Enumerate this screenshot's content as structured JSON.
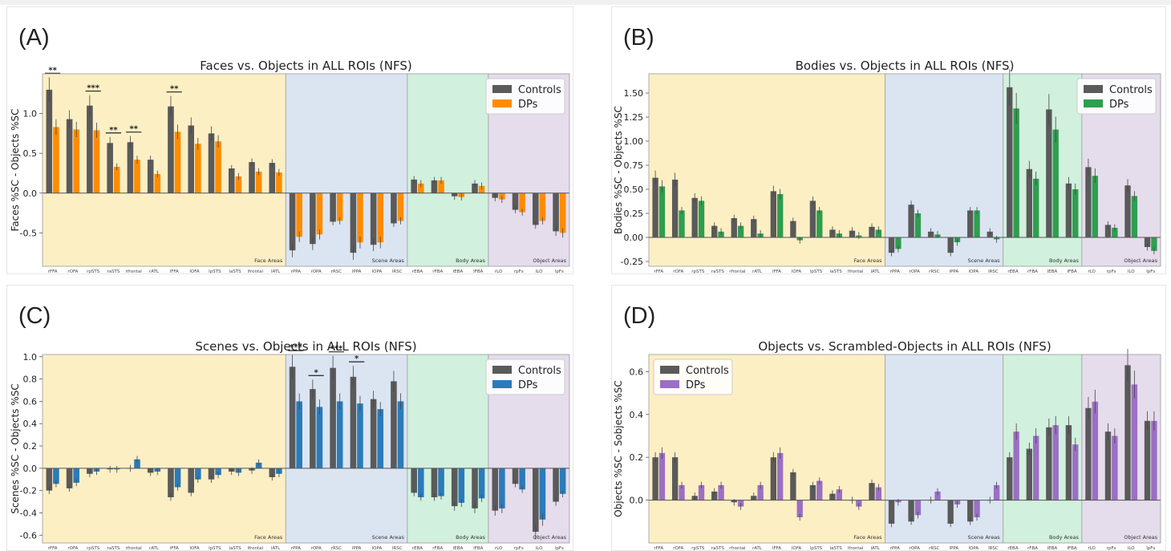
{
  "chart_data": [
    {
      "type": "bar",
      "panel_label": "(A)",
      "title": "Faces vs. Objects in ALL ROIs (NFS)",
      "ylabel": "Faces %SC - Objects %SC",
      "ylim": [
        -0.92,
        1.5
      ],
      "yticks": [
        "1.0",
        "0.5",
        "0.0",
        "-0.5"
      ],
      "ytick_values": [
        1.0,
        0.5,
        0.0,
        -0.5
      ],
      "legend_position": "top-right",
      "categories": [
        "rFFA",
        "rOFA",
        "rpSTS",
        "raSTS",
        "rfrontal",
        "rATL",
        "lFFA",
        "lOFA",
        "lpSTS",
        "laSTS",
        "lfrontal",
        "lATL",
        "rPPA",
        "rOPA",
        "rRSC",
        "lPPA",
        "lOPA",
        "lRSC",
        "rEBA",
        "rFBA",
        "lEBA",
        "lFBA",
        "rLO",
        "rpFs",
        "lLO",
        "lpFs"
      ],
      "regions": [
        {
          "label": "Face Areas",
          "color": "#fdefc4",
          "start": 0,
          "end": 11
        },
        {
          "label": "Scene Areas",
          "color": "#dbe5f2",
          "start": 12,
          "end": 17
        },
        {
          "label": "Body Areas",
          "color": "#d1f0dd",
          "start": 18,
          "end": 21
        },
        {
          "label": "Object Areas",
          "color": "#e5dcec",
          "start": 22,
          "end": 25
        }
      ],
      "series": [
        {
          "name": "Controls",
          "color": "#5a5a5a",
          "values": [
            1.3,
            0.93,
            1.1,
            0.63,
            0.64,
            0.42,
            1.09,
            0.85,
            0.75,
            0.31,
            0.39,
            0.38,
            -0.72,
            -0.64,
            -0.36,
            -0.75,
            -0.65,
            -0.38,
            0.17,
            0.16,
            -0.04,
            0.12,
            -0.06,
            -0.21,
            -0.4,
            -0.48
          ]
        },
        {
          "name": "DPs",
          "color": "#ff8c00",
          "values": [
            0.83,
            0.8,
            0.79,
            0.33,
            0.42,
            0.24,
            0.77,
            0.62,
            0.65,
            0.21,
            0.27,
            0.26,
            -0.55,
            -0.52,
            -0.35,
            -0.62,
            -0.62,
            -0.35,
            0.12,
            0.16,
            -0.05,
            0.09,
            -0.08,
            -0.24,
            -0.35,
            -0.5
          ]
        }
      ],
      "significance": [
        {
          "index": 0,
          "label": "**"
        },
        {
          "index": 2,
          "label": "***"
        },
        {
          "index": 3,
          "label": "**"
        },
        {
          "index": 4,
          "label": "**"
        },
        {
          "index": 6,
          "label": "**"
        }
      ]
    },
    {
      "type": "bar",
      "panel_label": "(B)",
      "title": "Bodies vs. Objects in ALL ROIs (NFS)",
      "ylabel": "Bodies %SC - Objects %SC",
      "ylim": [
        -0.3,
        1.7
      ],
      "yticks": [
        "1.50",
        "1.25",
        "1.00",
        "0.75",
        "0.50",
        "0.25",
        "0.00",
        "-0.25"
      ],
      "ytick_values": [
        1.5,
        1.25,
        1.0,
        0.75,
        0.5,
        0.25,
        0.0,
        -0.25
      ],
      "legend_position": "top-right",
      "categories": [
        "rFFA",
        "rOFA",
        "rpSTS",
        "raSTS",
        "rfrontal",
        "rATL",
        "lFFA",
        "lOFA",
        "lpSTS",
        "laSTS",
        "lfrontal",
        "lATL",
        "rPPA",
        "rOPA",
        "rRSC",
        "lPPA",
        "lOPA",
        "lRSC",
        "rEBA",
        "rFBA",
        "lEBA",
        "lFBA",
        "rLO",
        "rpFs",
        "lLO",
        "lpFs"
      ],
      "regions": [
        {
          "label": "Face Areas",
          "color": "#fdefc4",
          "start": 0,
          "end": 11
        },
        {
          "label": "Scene Areas",
          "color": "#dbe5f2",
          "start": 12,
          "end": 17
        },
        {
          "label": "Body Areas",
          "color": "#d1f0dd",
          "start": 18,
          "end": 21
        },
        {
          "label": "Object Areas",
          "color": "#e5dcec",
          "start": 22,
          "end": 25
        }
      ],
      "series": [
        {
          "name": "Controls",
          "color": "#5a5a5a",
          "values": [
            0.62,
            0.6,
            0.41,
            0.12,
            0.2,
            0.19,
            0.48,
            0.17,
            0.38,
            0.08,
            0.07,
            0.11,
            -0.16,
            0.34,
            0.06,
            -0.16,
            0.28,
            0.06,
            1.56,
            0.71,
            1.33,
            0.56,
            0.73,
            0.13,
            0.54,
            -0.1
          ]
        },
        {
          "name": "DPs",
          "color": "#2e9e4f",
          "values": [
            0.53,
            0.28,
            0.38,
            0.06,
            0.12,
            0.04,
            0.45,
            -0.03,
            0.28,
            0.04,
            0.02,
            0.08,
            -0.12,
            0.25,
            0.03,
            -0.05,
            0.28,
            -0.02,
            1.34,
            0.61,
            1.12,
            0.5,
            0.64,
            0.1,
            0.43,
            -0.14
          ]
        }
      ],
      "significance": []
    },
    {
      "type": "bar",
      "panel_label": "(C)",
      "title": "Scenes vs. Objects in ALL ROIs (NFS)",
      "ylabel": "Scenes %SC - Objects %SC",
      "ylim": [
        -0.67,
        1.02
      ],
      "yticks": [
        "1.0",
        "0.8",
        "0.6",
        "0.4",
        "0.2",
        "0.0",
        "-0.2",
        "-0.4",
        "-0.6"
      ],
      "ytick_values": [
        1.0,
        0.8,
        0.6,
        0.4,
        0.2,
        0.0,
        -0.2,
        -0.4,
        -0.6
      ],
      "legend_position": "top-right",
      "categories": [
        "rFFA",
        "rOFA",
        "rpSTS",
        "raSTS",
        "rfrontal",
        "rATL",
        "lFFA",
        "lOFA",
        "lpSTS",
        "laSTS",
        "lfrontal",
        "lATL",
        "rPPA",
        "rOPA",
        "rRSC",
        "lPPA",
        "lOPA",
        "lRSC",
        "rEBA",
        "rFBA",
        "lEBA",
        "lFBA",
        "rLO",
        "rpFs",
        "lLO",
        "lpFs"
      ],
      "regions": [
        {
          "label": "Face Areas",
          "color": "#fdefc4",
          "start": 0,
          "end": 11
        },
        {
          "label": "Scene Areas",
          "color": "#dbe5f2",
          "start": 12,
          "end": 17
        },
        {
          "label": "Body Areas",
          "color": "#d1f0dd",
          "start": 18,
          "end": 21
        },
        {
          "label": "Object Areas",
          "color": "#e5dcec",
          "start": 22,
          "end": 25
        }
      ],
      "series": [
        {
          "name": "Controls",
          "color": "#5a5a5a",
          "values": [
            -0.2,
            -0.18,
            -0.05,
            -0.01,
            0.0,
            -0.04,
            -0.26,
            -0.22,
            -0.1,
            -0.03,
            -0.02,
            -0.08,
            0.91,
            0.71,
            0.9,
            0.82,
            0.62,
            0.78,
            -0.22,
            -0.26,
            -0.34,
            -0.36,
            -0.38,
            -0.14,
            -0.57,
            -0.3
          ]
        },
        {
          "name": "DPs",
          "color": "#2b7bba",
          "values": [
            -0.14,
            -0.13,
            -0.03,
            -0.01,
            0.08,
            -0.03,
            -0.17,
            -0.1,
            -0.06,
            -0.04,
            0.05,
            -0.05,
            0.6,
            0.55,
            0.6,
            0.58,
            0.53,
            0.6,
            -0.26,
            -0.25,
            -0.31,
            -0.27,
            -0.36,
            -0.19,
            -0.46,
            -0.23
          ]
        }
      ],
      "significance": [
        {
          "index": 12,
          "label": "***"
        },
        {
          "index": 13,
          "label": "*"
        },
        {
          "index": 14,
          "label": "***"
        },
        {
          "index": 15,
          "label": "*"
        }
      ]
    },
    {
      "type": "bar",
      "panel_label": "(D)",
      "title": "Objects vs. Scrambled-Objects in ALL ROIs (NFS)",
      "ylabel": "Objects %SC - Sobjects %SC",
      "ylim": [
        -0.2,
        0.68
      ],
      "yticks": [
        "0.6",
        "0.4",
        "0.2",
        "0.0"
      ],
      "ytick_values": [
        0.6,
        0.4,
        0.2,
        0.0
      ],
      "legend_position": "top-left",
      "categories": [
        "rFFA",
        "rOFA",
        "rpSTS",
        "raSTS",
        "rfrontal",
        "rATL",
        "lFFA",
        "lOFA",
        "lpSTS",
        "laSTS",
        "lfrontal",
        "lATL",
        "rPPA",
        "rOPA",
        "rRSC",
        "lPPA",
        "lOPA",
        "lRSC",
        "rEBA",
        "rFBA",
        "lEBA",
        "lFBA",
        "rLO",
        "rpFs",
        "lLO",
        "lpFs"
      ],
      "regions": [
        {
          "label": "Face Areas",
          "color": "#fdefc4",
          "start": 0,
          "end": 11
        },
        {
          "label": "Scene Areas",
          "color": "#dbe5f2",
          "start": 12,
          "end": 17
        },
        {
          "label": "Body Areas",
          "color": "#d1f0dd",
          "start": 18,
          "end": 21
        },
        {
          "label": "Object Areas",
          "color": "#e5dcec",
          "start": 22,
          "end": 25
        }
      ],
      "series": [
        {
          "name": "Controls",
          "color": "#5a5a5a",
          "values": [
            0.2,
            0.2,
            0.02,
            0.04,
            -0.01,
            0.02,
            0.2,
            0.13,
            0.07,
            0.03,
            0.0,
            0.08,
            -0.11,
            -0.1,
            0.0,
            -0.11,
            -0.1,
            0.0,
            0.2,
            0.24,
            0.34,
            0.35,
            0.43,
            0.32,
            0.63,
            0.37
          ]
        },
        {
          "name": "DPs",
          "color": "#9b6fc4",
          "values": [
            0.22,
            0.07,
            0.07,
            0.07,
            -0.03,
            0.07,
            0.22,
            -0.08,
            0.09,
            0.05,
            -0.03,
            0.06,
            -0.01,
            -0.07,
            0.04,
            -0.02,
            -0.08,
            0.07,
            0.32,
            0.3,
            0.35,
            0.26,
            0.46,
            0.3,
            0.54,
            0.37
          ]
        }
      ],
      "significance": []
    }
  ]
}
